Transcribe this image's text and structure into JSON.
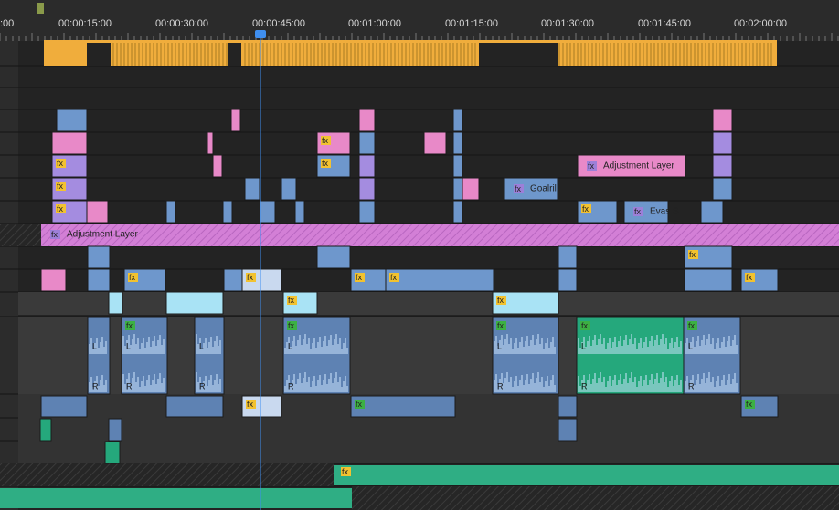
{
  "ruler": {
    "timecodes": [
      ":00",
      "00:00:15:00",
      "00:00:30:00",
      "00:00:45:00",
      "00:01:00:00",
      "00:01:15:00",
      "00:01:30:00",
      "00:01:45:00",
      "00:02:00:00"
    ]
  },
  "clips": [
    {
      "label": "Adjustment Layer"
    },
    {
      "label": "Adjustment Layer"
    },
    {
      "label": "Goalril"
    },
    {
      "label": "Evas S"
    }
  ],
  "fx_badge": "fx",
  "channels": [
    "L",
    "R"
  ]
}
